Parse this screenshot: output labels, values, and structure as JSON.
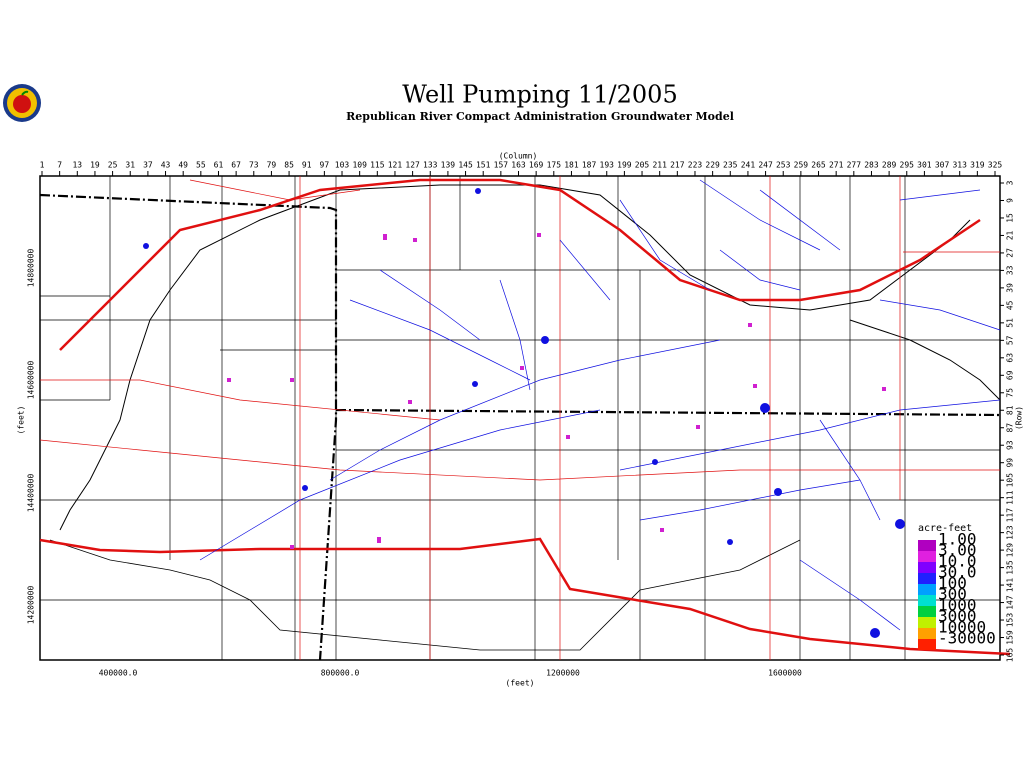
{
  "header": {
    "title": "Well Pumping 11/2005",
    "subtitle": "Republican River Compact Administration Groundwater Model"
  },
  "column_axis": {
    "label": "(Column)",
    "ticks": [
      1,
      7,
      13,
      19,
      25,
      31,
      37,
      43,
      49,
      55,
      61,
      67,
      73,
      79,
      85,
      91,
      97,
      103,
      109,
      115,
      121,
      127,
      133,
      139,
      145,
      151,
      157,
      163,
      169,
      175,
      181,
      187,
      193,
      199,
      205,
      211,
      217,
      223,
      229,
      235,
      241,
      247,
      253,
      259,
      265,
      271,
      277,
      283,
      289,
      295,
      301,
      307,
      313,
      319,
      325
    ]
  },
  "row_axis": {
    "label": "(Row)",
    "ticks": [
      3,
      9,
      15,
      21,
      27,
      33,
      39,
      45,
      51,
      57,
      63,
      69,
      75,
      81,
      87,
      93,
      99,
      105,
      111,
      117,
      123,
      129,
      135,
      141,
      147,
      153,
      159,
      165
    ]
  },
  "y_feet_axis": {
    "label": "(feet)",
    "ticks": [
      "14800000",
      "14600000",
      "14400000",
      "14200000"
    ]
  },
  "x_feet_axis": {
    "label": "(feet)",
    "ticks": [
      "400000.0",
      "800000.0",
      "1200000",
      "1600000"
    ]
  },
  "legend": {
    "title": "acre-feet",
    "entries": [
      {
        "label": "1.00",
        "color": "#b000c0"
      },
      {
        "label": "3.00",
        "color": "#e020e0"
      },
      {
        "label": "10.0",
        "color": "#8000ff"
      },
      {
        "label": "30.0",
        "color": "#2020ff"
      },
      {
        "label": "100",
        "color": "#00a0ff"
      },
      {
        "label": "300",
        "color": "#00e0d0"
      },
      {
        "label": "1000",
        "color": "#00d040"
      },
      {
        "label": "3000",
        "color": "#c0f000"
      },
      {
        "label": "10000",
        "color": "#ffa000"
      },
      {
        "label": "-30000",
        "color": "#ff2000"
      }
    ]
  }
}
